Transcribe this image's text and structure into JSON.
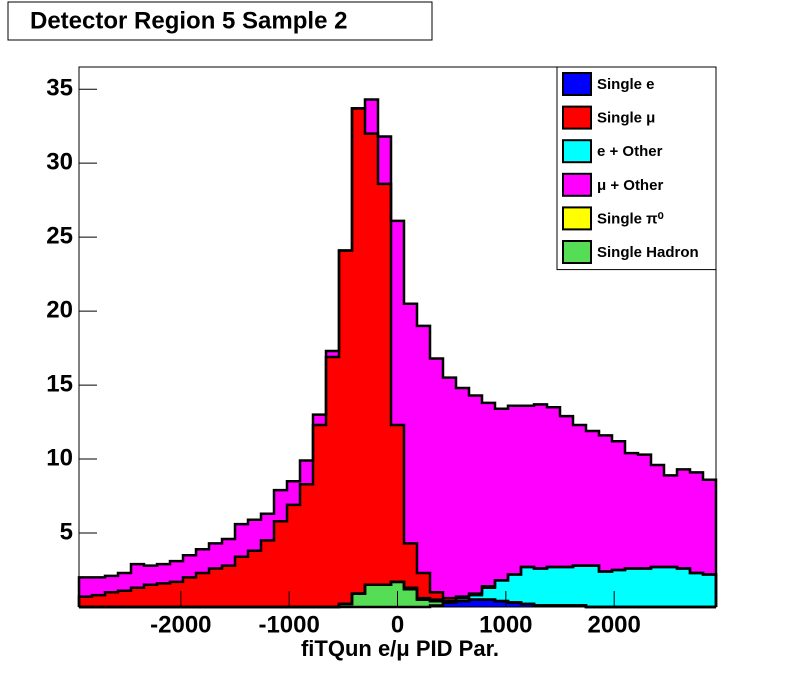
{
  "chart_data": {
    "type": "histogram",
    "stacked": true,
    "title": "Detector Region 5 Sample 2",
    "x_label": "fiTQun e/μ PID Par.",
    "bins": [
      -2940,
      -2820,
      -2700,
      -2580,
      -2460,
      -2340,
      -2220,
      -2100,
      -1980,
      -1860,
      -1740,
      -1620,
      -1500,
      -1380,
      -1260,
      -1140,
      -1020,
      -900,
      -780,
      -660,
      -540,
      -420,
      -300,
      -180,
      -60,
      60,
      180,
      300,
      420,
      540,
      660,
      780,
      900,
      1020,
      1140,
      1260,
      1380,
      1500,
      1620,
      1740,
      1860,
      1980,
      2100,
      2220,
      2340,
      2460,
      2580,
      2700,
      2820,
      2940
    ],
    "xlim": [
      -2940,
      2940
    ],
    "xticks": [
      -2000,
      -1000,
      0,
      1000,
      2000
    ],
    "ylim": [
      0,
      36.5
    ],
    "yticks": [
      5,
      10,
      15,
      20,
      25,
      30,
      35
    ],
    "legend": "top-right",
    "series": [
      {
        "name": "Single e",
        "color": "#0000ff",
        "values": [
          0,
          0,
          0,
          0,
          0,
          0,
          0,
          0,
          0,
          0,
          0,
          0,
          0,
          0,
          0,
          0,
          0,
          0,
          0,
          0,
          0,
          0,
          0,
          0,
          0,
          0,
          0,
          0.1,
          0.3,
          0.4,
          0.5,
          0.5,
          0.4,
          0.3,
          0.2,
          0.1,
          0.1,
          0.1,
          0.1,
          0,
          0,
          0,
          0,
          0,
          0,
          0,
          0,
          0,
          0
        ]
      },
      {
        "name": "Single μ",
        "color": "#ff0000",
        "values": [
          0.7,
          0.8,
          1.0,
          1.1,
          1.3,
          1.5,
          1.6,
          1.7,
          2.0,
          2.3,
          2.6,
          2.8,
          3.4,
          3.8,
          4.5,
          5.8,
          6.9,
          8.3,
          12.3,
          16.9,
          23.9,
          32.8,
          30.5,
          27.1,
          10.6,
          3.0,
          1.7,
          0.5,
          0.2,
          0.1,
          0.1,
          0.1,
          0,
          0,
          0,
          0,
          0,
          0,
          0,
          0,
          0,
          0,
          0,
          0,
          0,
          0,
          0,
          0,
          0
        ]
      },
      {
        "name": "e + Other",
        "color": "#00ffff",
        "values": [
          0,
          0,
          0,
          0,
          0,
          0,
          0,
          0,
          0,
          0,
          0,
          0,
          0,
          0,
          0,
          0,
          0,
          0,
          0,
          0,
          0,
          0,
          0,
          0,
          0,
          0.1,
          0.1,
          0.1,
          0.1,
          0.2,
          0.3,
          0.8,
          1.4,
          1.9,
          2.5,
          2.5,
          2.6,
          2.6,
          2.7,
          2.8,
          2.4,
          2.5,
          2.6,
          2.6,
          2.7,
          2.7,
          2.6,
          2.3,
          2.2
        ]
      },
      {
        "name": "μ + Other",
        "color": "#ff00ff",
        "values": [
          1.3,
          1.2,
          1.1,
          1.2,
          1.6,
          1.3,
          1.3,
          1.4,
          1.5,
          1.6,
          1.7,
          1.8,
          2.2,
          2.1,
          1.8,
          2.1,
          1.6,
          1.6,
          0.7,
          0.4,
          0,
          0,
          2.3,
          3.2,
          13.8,
          16.2,
          16.7,
          15.8,
          14.9,
          14.1,
          13.4,
          12.4,
          11.6,
          11.4,
          10.9,
          11.1,
          10.8,
          10.2,
          9.5,
          9.1,
          9.2,
          8.7,
          7.8,
          7.7,
          6.9,
          6.2,
          6.7,
          6.8,
          6.4
        ]
      },
      {
        "name": "Single π⁰",
        "color": "#ffff00",
        "values": [
          0,
          0,
          0,
          0,
          0,
          0,
          0,
          0,
          0,
          0,
          0,
          0,
          0,
          0,
          0,
          0,
          0,
          0,
          0,
          0,
          0,
          0,
          0,
          0,
          0,
          0,
          0,
          0,
          0,
          0,
          0,
          0,
          0,
          0,
          0,
          0,
          0,
          0,
          0,
          0,
          0,
          0,
          0,
          0,
          0,
          0,
          0,
          0,
          0
        ]
      },
      {
        "name": "Single Hadron",
        "color": "#55dd55",
        "values": [
          0,
          0,
          0,
          0,
          0,
          0,
          0,
          0,
          0,
          0,
          0,
          0,
          0,
          0,
          0,
          0,
          0,
          0,
          0,
          0,
          0.2,
          0.9,
          1.5,
          1.5,
          1.7,
          1.2,
          0.5,
          0.3,
          0,
          0,
          0,
          0,
          0,
          0,
          0,
          0,
          0,
          0,
          0,
          0,
          0,
          0,
          0,
          0,
          0,
          0,
          0,
          0,
          0
        ]
      }
    ]
  }
}
